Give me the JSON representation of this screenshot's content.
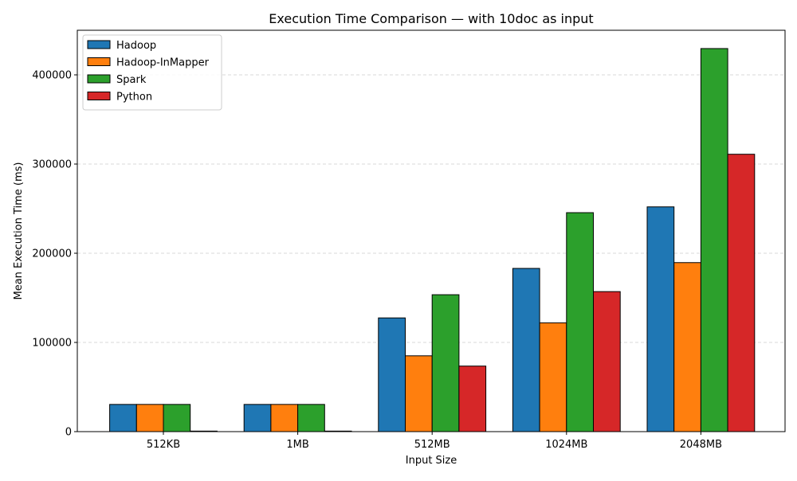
{
  "chart_data": {
    "type": "bar",
    "title": "Execution Time Comparison — with 10doc as input",
    "xlabel": "Input Size",
    "ylabel": "Mean Execution Time (ms)",
    "categories": [
      "512KB",
      "1MB",
      "512MB",
      "1024MB",
      "2048MB"
    ],
    "ylim": [
      0,
      450000
    ],
    "yticks": [
      0,
      100000,
      200000,
      300000,
      400000
    ],
    "grid": "y-dashed",
    "legend_position": "top-left",
    "series": [
      {
        "name": "Hadoop",
        "color": "#1f77b4",
        "values": [
          30500,
          30500,
          127500,
          183000,
          252000
        ]
      },
      {
        "name": "Hadoop-InMapper",
        "color": "#ff7f0e",
        "values": [
          30500,
          30500,
          85000,
          122000,
          189500
        ]
      },
      {
        "name": "Spark",
        "color": "#2ca02c",
        "values": [
          30500,
          30500,
          153500,
          245500,
          429500
        ]
      },
      {
        "name": "Python",
        "color": "#d62728",
        "values": [
          600,
          600,
          73500,
          157000,
          311000
        ]
      }
    ]
  }
}
